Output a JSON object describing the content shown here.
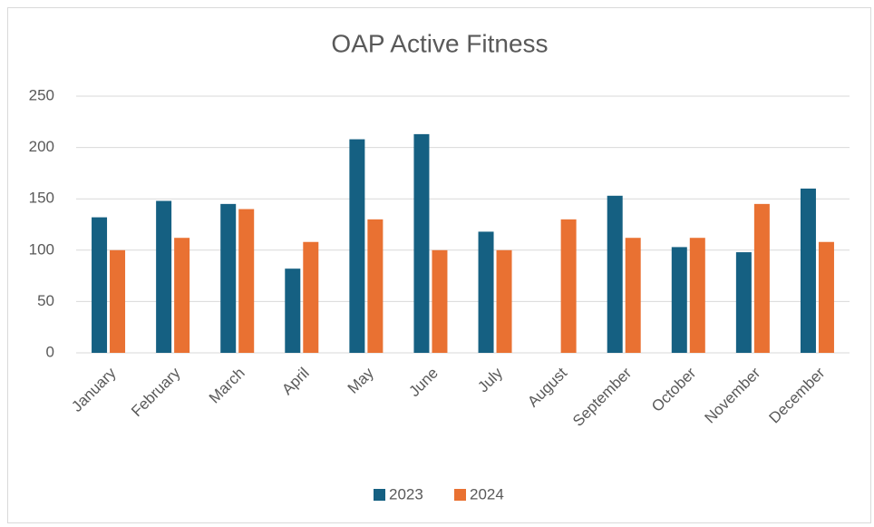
{
  "chart_data": {
    "type": "bar",
    "title": "OAP Active Fitness",
    "categories": [
      "January",
      "February",
      "March",
      "April",
      "May",
      "June",
      "July",
      "August",
      "September",
      "October",
      "November",
      "December"
    ],
    "series": [
      {
        "name": "2023",
        "color": "#156082",
        "values": [
          132,
          148,
          145,
          82,
          208,
          213,
          118,
          null,
          153,
          103,
          98,
          160
        ]
      },
      {
        "name": "2024",
        "color": "#e97132",
        "values": [
          100,
          112,
          140,
          108,
          130,
          100,
          100,
          130,
          112,
          112,
          145,
          108
        ]
      }
    ],
    "ylim": [
      0,
      250
    ],
    "yticks": [
      0,
      50,
      100,
      150,
      200,
      250
    ],
    "grid": true,
    "legend": "bottom"
  }
}
